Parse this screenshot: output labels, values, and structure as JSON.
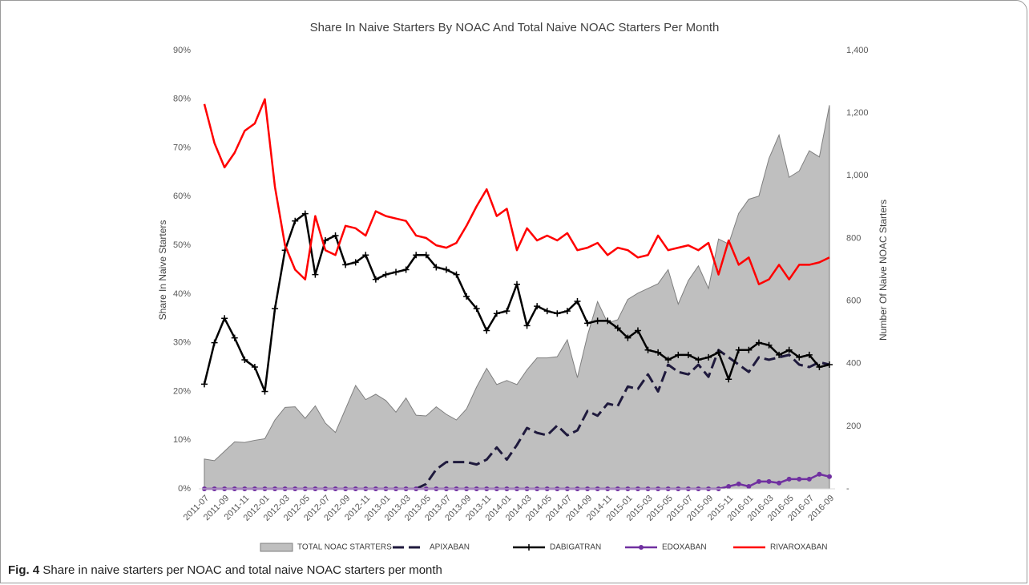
{
  "chart_data": {
    "type": "line",
    "title": "Share In Naive Starters By NOAC And Total Naive NOAC Starters Per Month",
    "y_label": "Share In Naive Starters",
    "y2_label": "Number Of Naive NOAC Starters",
    "categories": [
      "2011-07",
      null,
      "2011-09",
      null,
      "2011-11",
      null,
      "2012-01",
      null,
      "2012-03",
      null,
      "2012-05",
      null,
      "2012-07",
      null,
      "2012-09",
      null,
      "2012-11",
      null,
      "2013-01",
      null,
      "2013-03",
      null,
      "2013-05",
      null,
      "2013-07",
      null,
      "2013-09",
      null,
      "2013-11",
      null,
      "2014-01",
      null,
      "2014-03",
      null,
      "2014-05",
      null,
      "2014-07",
      null,
      "2014-09",
      null,
      "2014-11",
      null,
      "2015-01",
      null,
      "2015-03",
      null,
      "2015-05",
      null,
      "2015-07",
      null,
      "2015-09",
      null,
      "2015-11",
      null,
      "2016-01",
      null,
      "2016-03",
      null,
      "2016-05",
      null,
      "2016-07",
      null,
      "2016-09"
    ],
    "ylim": [
      0,
      90
    ],
    "yticks": [
      {
        "value": 0,
        "label": "0%"
      },
      {
        "value": 10,
        "label": "10%"
      },
      {
        "value": 20,
        "label": "20%"
      },
      {
        "value": 30,
        "label": "30%"
      },
      {
        "value": 40,
        "label": "40%"
      },
      {
        "value": 50,
        "label": "50%"
      },
      {
        "value": 60,
        "label": "60%"
      },
      {
        "value": 70,
        "label": "70%"
      },
      {
        "value": 80,
        "label": "80%"
      },
      {
        "value": 90,
        "label": "90%"
      }
    ],
    "y2lim": [
      0,
      1400
    ],
    "y2ticks": [
      {
        "value": 0,
        "label": "-"
      },
      200,
      400,
      600,
      800,
      {
        "value": 1000,
        "label": "1,000"
      },
      {
        "value": 1200,
        "label": "1,200"
      },
      {
        "value": 1400,
        "label": "1,400"
      }
    ],
    "grid": false,
    "legend": "bottom",
    "series": [
      {
        "name": "TOTAL NOAC STARTERS",
        "type": "area",
        "axis": "y2",
        "color": "#bfbfbf",
        "values": [
          95,
          90,
          120,
          150,
          148,
          155,
          160,
          220,
          260,
          262,
          225,
          265,
          210,
          180,
          255,
          330,
          285,
          302,
          282,
          245,
          290,
          235,
          233,
          262,
          238,
          220,
          255,
          325,
          385,
          333,
          346,
          333,
          380,
          418,
          418,
          422,
          476,
          355,
          490,
          598,
          530,
          540,
          605,
          625,
          640,
          655,
          700,
          590,
          665,
          712,
          640,
          798,
          782,
          880,
          925,
          935,
          1055,
          1130,
          995,
          1015,
          1080,
          1060,
          1225
        ]
      },
      {
        "name": "APIXABAN",
        "type": "line",
        "color": "#1f1a3d",
        "dash": true,
        "values": [
          null,
          null,
          null,
          null,
          null,
          null,
          null,
          null,
          null,
          null,
          null,
          null,
          null,
          null,
          null,
          null,
          null,
          null,
          null,
          null,
          null,
          0,
          1,
          4,
          5.5,
          5.5,
          5.5,
          5,
          6,
          8.5,
          6,
          9,
          12.5,
          11.5,
          11,
          13,
          11,
          12,
          16,
          15,
          17.5,
          17,
          21,
          20.5,
          23.5,
          20,
          25.5,
          24,
          23.5,
          25.5,
          23,
          28.5,
          27,
          25.5,
          24,
          27,
          26.5,
          27,
          27.5,
          25.5,
          25,
          26,
          25.5
        ]
      },
      {
        "name": "DABIGATRAN",
        "type": "line",
        "color": "#000000",
        "marker": "plus",
        "values": [
          21.5,
          30,
          35,
          31,
          26.5,
          25,
          20,
          37,
          49,
          55,
          56.5,
          44,
          51,
          52,
          46,
          46.5,
          48,
          43,
          44,
          44.5,
          45,
          48,
          48,
          45.5,
          45,
          44,
          39.5,
          37,
          32.5,
          36,
          36.5,
          42,
          33.5,
          37.5,
          36.5,
          36,
          36.5,
          38.5,
          34,
          34.5,
          34.5,
          33,
          31,
          32.5,
          28.5,
          28,
          26.5,
          27.5,
          27.5,
          26.5,
          27,
          28,
          22.5,
          28.5,
          28.5,
          30,
          29.5,
          27.5,
          28.5,
          27,
          27.5,
          25,
          25.5
        ]
      },
      {
        "name": "EDOXABAN",
        "type": "line",
        "color": "#7030a0",
        "marker": "circle",
        "values": [
          0,
          0,
          0,
          0,
          0,
          0,
          0,
          0,
          0,
          0,
          0,
          0,
          0,
          0,
          0,
          0,
          0,
          0,
          0,
          0,
          0,
          0,
          0,
          0,
          0,
          0,
          0,
          0,
          0,
          0,
          0,
          0,
          0,
          0,
          0,
          0,
          0,
          0,
          0,
          0,
          0,
          0,
          0,
          0,
          0,
          0,
          0,
          0,
          0,
          0,
          0,
          0,
          0.5,
          1,
          0.5,
          1.5,
          1.5,
          1.2,
          2,
          2,
          2,
          3,
          2.5
        ]
      },
      {
        "name": "RIVAROXABAN",
        "type": "line",
        "color": "#ff0000",
        "values": [
          79,
          71,
          66,
          69,
          73.5,
          75,
          80,
          62,
          50,
          45,
          43,
          56,
          49,
          48,
          54,
          53.5,
          52,
          57,
          56,
          55.5,
          55,
          52,
          51.5,
          50,
          49.5,
          50.5,
          54,
          58,
          61.5,
          56,
          57.5,
          49,
          53.5,
          51,
          52,
          51,
          52.5,
          49,
          49.5,
          50.5,
          48,
          49.5,
          49,
          47.5,
          48,
          52,
          49,
          49.5,
          50,
          49,
          50.5,
          44,
          51,
          46,
          47.5,
          42,
          43,
          46,
          43,
          46,
          46,
          46.5,
          47.5
        ]
      }
    ]
  },
  "caption": {
    "label": "Fig. 4",
    "text": "Share in naive starters per NOAC and total naive NOAC starters per month"
  }
}
